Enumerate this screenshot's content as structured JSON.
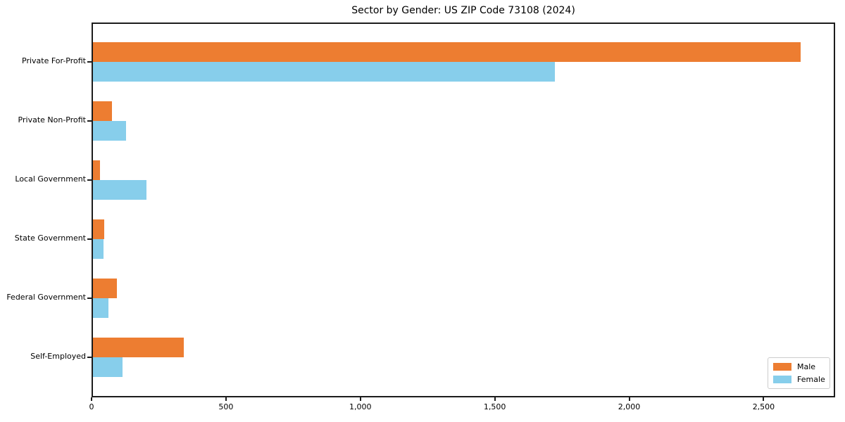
{
  "chart_data": {
    "type": "bar",
    "orientation": "horizontal",
    "title": "Sector by Gender: US ZIP Code 73108 (2024)",
    "categories": [
      "Private For-Profit",
      "Private Non-Profit",
      "Local Government",
      "State Government",
      "Federal Government",
      "Self-Employed"
    ],
    "series": [
      {
        "name": "Male",
        "color": "#ED7D31",
        "values": [
          2633,
          72,
          27,
          41,
          90,
          339
        ]
      },
      {
        "name": "Female",
        "color": "#87CEEB",
        "values": [
          1719,
          122,
          199,
          40,
          58,
          110
        ]
      }
    ],
    "xlabel": "",
    "ylabel": "",
    "xlim": [
      0,
      2766
    ],
    "xticks": [
      0,
      500,
      1000,
      1500,
      2000,
      2500
    ],
    "xtick_labels": [
      "0",
      "500",
      "1,000",
      "1,500",
      "2,000",
      "2,500"
    ],
    "grid": false,
    "legend": {
      "position": "lower right",
      "entries": [
        "Male",
        "Female"
      ]
    }
  },
  "colors": {
    "axis": "#1c1c1c",
    "background": "#ffffff",
    "legend_border": "#cccccc",
    "text": "#000000"
  }
}
